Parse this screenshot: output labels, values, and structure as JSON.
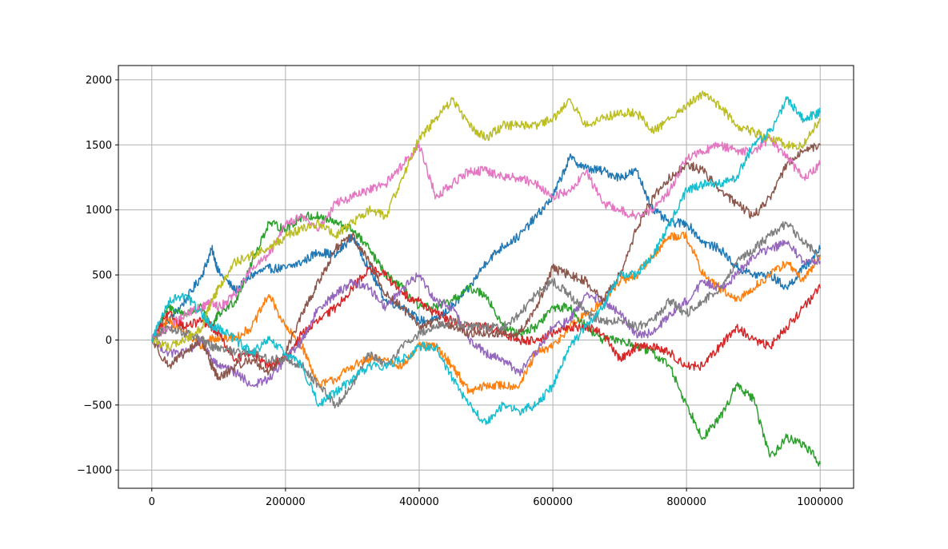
{
  "chart_data": {
    "type": "line",
    "title": "",
    "xlabel": "",
    "ylabel": "",
    "grid": true,
    "legend": "none",
    "xlim": [
      -50000,
      1050000
    ],
    "ylim": [
      -1140,
      2110
    ],
    "x_ticks": [
      0,
      200000,
      400000,
      600000,
      800000,
      1000000
    ],
    "x_tick_labels": [
      "0",
      "200000",
      "400000",
      "600000",
      "800000",
      "1000000"
    ],
    "y_ticks": [
      -1000,
      -500,
      0,
      500,
      1000,
      1500,
      2000
    ],
    "y_tick_labels": [
      "−1000",
      "−500",
      "0",
      "500",
      "1000",
      "1500",
      "2000"
    ],
    "x": [
      0,
      25000,
      50000,
      75000,
      90000,
      100000,
      125000,
      150000,
      175000,
      200000,
      225000,
      250000,
      275000,
      300000,
      325000,
      350000,
      375000,
      400000,
      425000,
      450000,
      475000,
      500000,
      525000,
      550000,
      575000,
      600000,
      625000,
      650000,
      675000,
      700000,
      725000,
      750000,
      775000,
      800000,
      825000,
      850000,
      875000,
      900000,
      925000,
      950000,
      975000,
      1000000
    ],
    "series": [
      {
        "color": "#1f77b4",
        "values": [
          0,
          150,
          300,
          500,
          700,
          520,
          380,
          500,
          550,
          550,
          600,
          680,
          650,
          800,
          550,
          300,
          260,
          150,
          150,
          260,
          400,
          600,
          720,
          800,
          950,
          1100,
          1400,
          1320,
          1300,
          1250,
          1300,
          1000,
          900,
          900,
          750,
          700,
          560,
          500,
          500,
          400,
          550,
          700
        ]
      },
      {
        "color": "#ff7f0e",
        "values": [
          0,
          150,
          50,
          -50,
          20,
          10,
          20,
          100,
          350,
          100,
          -50,
          -350,
          -300,
          -200,
          -150,
          -150,
          -200,
          -50,
          -50,
          -200,
          -400,
          -350,
          -350,
          -350,
          -100,
          -50,
          100,
          200,
          300,
          450,
          500,
          650,
          800,
          800,
          500,
          400,
          300,
          400,
          500,
          600,
          450,
          650
        ]
      },
      {
        "color": "#2ca02c",
        "values": [
          0,
          250,
          200,
          250,
          100,
          200,
          300,
          600,
          900,
          850,
          950,
          950,
          900,
          850,
          700,
          500,
          400,
          250,
          250,
          300,
          400,
          350,
          100,
          50,
          100,
          250,
          250,
          100,
          0,
          0,
          -50,
          -100,
          -200,
          -500,
          -750,
          -600,
          -350,
          -450,
          -900,
          -750,
          -800,
          -950
        ]
      },
      {
        "color": "#d62728",
        "values": [
          0,
          200,
          100,
          150,
          100,
          50,
          -150,
          -100,
          -200,
          -150,
          50,
          150,
          250,
          400,
          550,
          500,
          350,
          300,
          200,
          150,
          100,
          100,
          50,
          0,
          0,
          50,
          100,
          100,
          50,
          -150,
          -50,
          -50,
          -100,
          -200,
          -200,
          -50,
          100,
          0,
          -50,
          100,
          250,
          400
        ]
      },
      {
        "color": "#9467bd",
        "values": [
          0,
          -100,
          -100,
          0,
          -150,
          -200,
          -250,
          -350,
          -300,
          -150,
          0,
          250,
          350,
          450,
          400,
          250,
          400,
          500,
          300,
          250,
          0,
          -100,
          -150,
          -250,
          -100,
          100,
          150,
          350,
          300,
          200,
          50,
          50,
          200,
          300,
          450,
          400,
          500,
          650,
          700,
          750,
          600,
          600
        ]
      },
      {
        "color": "#8c564b",
        "values": [
          0,
          -200,
          -100,
          0,
          -200,
          -300,
          -200,
          -150,
          -250,
          -100,
          200,
          450,
          700,
          800,
          600,
          350,
          250,
          100,
          150,
          100,
          50,
          50,
          50,
          50,
          250,
          550,
          500,
          450,
          300,
          500,
          850,
          1100,
          1250,
          1350,
          1300,
          1150,
          1050,
          950,
          1100,
          1350,
          1450,
          1500
        ]
      },
      {
        "color": "#e377c2",
        "values": [
          0,
          100,
          200,
          250,
          300,
          250,
          350,
          550,
          650,
          900,
          950,
          850,
          1050,
          1100,
          1150,
          1200,
          1350,
          1500,
          1100,
          1200,
          1300,
          1300,
          1250,
          1250,
          1200,
          1100,
          1150,
          1300,
          1050,
          1000,
          950,
          1000,
          1150,
          1400,
          1450,
          1500,
          1450,
          1450,
          1550,
          1400,
          1250,
          1350
        ]
      },
      {
        "color": "#7f7f7f",
        "values": [
          0,
          100,
          50,
          0,
          -50,
          -50,
          -100,
          -100,
          -150,
          -150,
          -200,
          -350,
          -500,
          -350,
          -100,
          -200,
          -50,
          50,
          100,
          150,
          100,
          100,
          100,
          200,
          350,
          450,
          350,
          200,
          150,
          150,
          100,
          150,
          300,
          200,
          300,
          400,
          600,
          700,
          800,
          900,
          750,
          650
        ]
      },
      {
        "color": "#bcbd22",
        "values": [
          0,
          -50,
          0,
          100,
          300,
          400,
          600,
          650,
          700,
          800,
          850,
          900,
          800,
          900,
          1000,
          950,
          1250,
          1550,
          1700,
          1850,
          1650,
          1550,
          1650,
          1650,
          1650,
          1700,
          1850,
          1650,
          1700,
          1750,
          1750,
          1600,
          1700,
          1800,
          1900,
          1800,
          1650,
          1600,
          1550,
          1500,
          1500,
          1700
        ]
      },
      {
        "color": "#17becf",
        "values": [
          0,
          300,
          350,
          200,
          100,
          100,
          0,
          -100,
          0,
          -100,
          -200,
          -500,
          -400,
          -300,
          -200,
          -200,
          -150,
          -50,
          -50,
          -300,
          -500,
          -650,
          -500,
          -550,
          -500,
          -350,
          -50,
          100,
          250,
          500,
          500,
          650,
          900,
          1150,
          1200,
          1200,
          1250,
          1500,
          1600,
          1850,
          1700,
          1750
        ]
      }
    ]
  }
}
